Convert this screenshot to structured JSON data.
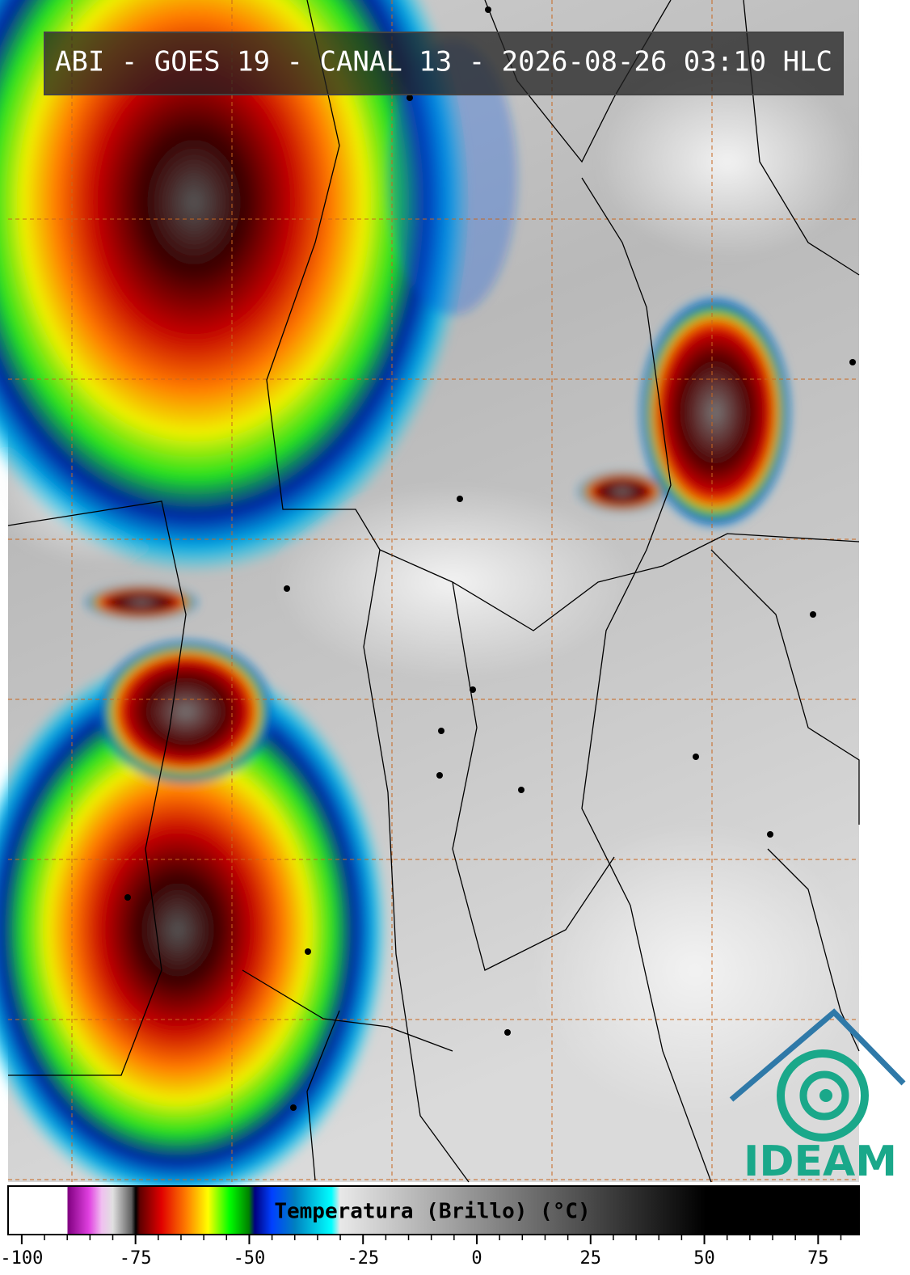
{
  "header": {
    "title": "ABI - GOES 19 - CANAL 13 - 2026-08-26 03:10 HLC"
  },
  "logo": {
    "text": "IDEAM"
  },
  "colorbar": {
    "label": "Temperatura (Brillo) (°C)",
    "xlim": [
      -103,
      84
    ],
    "ticks": [
      -100,
      -75,
      -50,
      -25,
      0,
      25,
      50,
      75
    ],
    "minor_ticks": [
      -95,
      -90,
      -85,
      -80,
      -70,
      -65,
      -60,
      -55,
      -45,
      -40,
      -35,
      -30,
      -20,
      -15,
      -10,
      -5,
      5,
      10,
      15,
      20,
      30,
      35,
      40,
      45,
      55,
      60,
      65,
      70,
      80
    ]
  }
}
